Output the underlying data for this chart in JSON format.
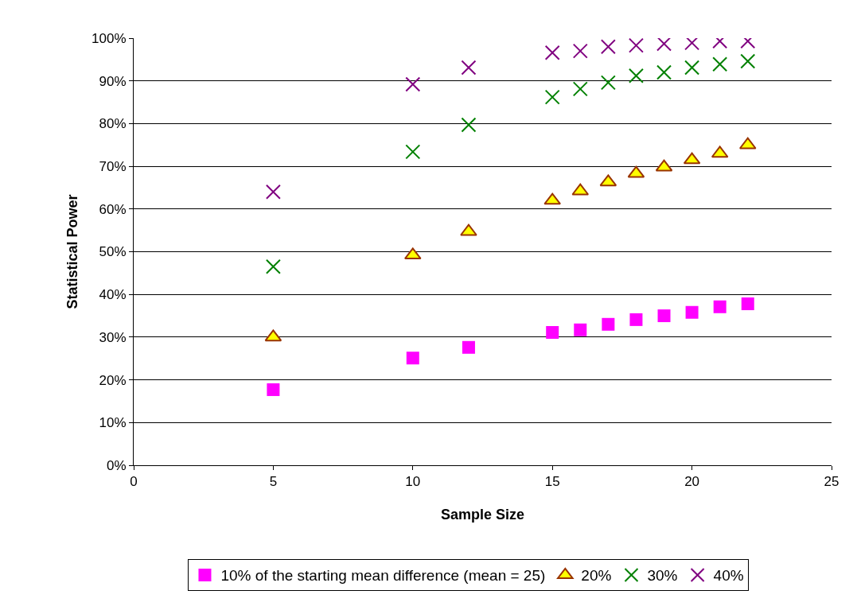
{
  "chart_data": {
    "type": "scatter",
    "xlabel": "Sample Size",
    "ylabel": "Statistical Power",
    "x": [
      5,
      10,
      12,
      15,
      16,
      17,
      18,
      19,
      20,
      21,
      22
    ],
    "series": [
      {
        "name": "10% of the starting mean difference (mean = 25)",
        "color": "#ff00ff",
        "marker": "square",
        "values": [
          17.7,
          25.1,
          27.6,
          31.1,
          31.7,
          33,
          34.1,
          35,
          35.8,
          37.1,
          37.8
        ]
      },
      {
        "name": "20%",
        "color": "#ffff00",
        "marker": "triangle",
        "values": [
          30,
          49.2,
          54.7,
          62,
          64.2,
          66.3,
          68.3,
          69.8,
          71.5,
          73,
          75
        ]
      },
      {
        "name": "30%",
        "color": "#008000",
        "marker": "cross",
        "values": [
          46.5,
          73.4,
          79.7,
          86.2,
          88.1,
          89.6,
          91.2,
          92,
          93.1,
          93.9,
          94.6
        ]
      },
      {
        "name": "40%",
        "color": "#800080",
        "marker": "cross",
        "values": [
          64,
          89.2,
          93.1,
          96.6,
          97,
          98,
          98.3,
          98.7,
          98.9,
          99.3,
          99.3
        ]
      }
    ],
    "xlim": [
      0,
      25
    ],
    "xticks": [
      0,
      5,
      10,
      15,
      20,
      25
    ],
    "ylim": [
      0,
      100
    ],
    "yticks": [
      {
        "value": 0,
        "label": "0%"
      },
      {
        "value": 10,
        "label": "10%"
      },
      {
        "value": 20,
        "label": "20%"
      },
      {
        "value": 30,
        "label": "30%"
      },
      {
        "value": 40,
        "label": "40%"
      },
      {
        "value": 50,
        "label": "50%"
      },
      {
        "value": 60,
        "label": "60%"
      },
      {
        "value": 70,
        "label": "70%"
      },
      {
        "value": 80,
        "label": "80%"
      },
      {
        "value": 90,
        "label": "90%"
      },
      {
        "value": 100,
        "label": "100%"
      }
    ],
    "grid": "y",
    "legend": "bottom"
  }
}
